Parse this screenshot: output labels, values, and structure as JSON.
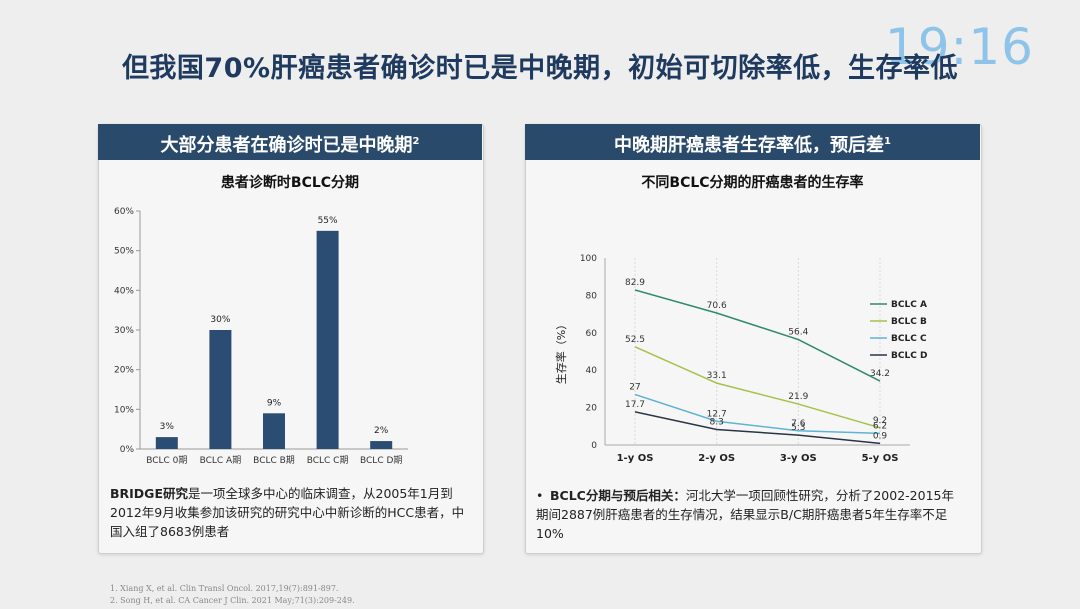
{
  "clock": "19:16",
  "title": "但我国70%肝癌患者确诊时已是中晚期，初始可切除率低，生存率低",
  "left_panel": {
    "header": "大部分患者在确诊时已是中晚期",
    "header_sup": "2",
    "desc_bold": "BRIDGE研究",
    "desc_rest": "是一项全球多中心的临床调查，从2005年1月到2012年9月收集参加该研究的研究中心中新诊断的HCC患者，中国入组了8683例患者"
  },
  "right_panel": {
    "header": "中晚期肝癌患者生存率低，预后差",
    "header_sup": "1",
    "bullet": "•",
    "desc_bold": "BCLC分期与预后相关：",
    "desc_rest": "河北大学一项回顾性研究，分析了2002-2015年期间2887例肝癌患者的生存情况，结果显示B/C期肝癌患者5年生存率不足10%"
  },
  "references": [
    "1. Xiang X, et al. Clin Transl Oncol. 2017,19(7):891-897.",
    "2. Song H, et al. CA Cancer J Clin. 2021 May;71(3):209-249."
  ],
  "chart_data": [
    {
      "type": "bar",
      "title": "患者诊断时BCLC分期",
      "categories": [
        "BCLC 0期",
        "BCLC A期",
        "BCLC B期",
        "BCLC C期",
        "BCLC D期"
      ],
      "values": [
        3,
        30,
        9,
        55,
        2
      ],
      "value_labels": [
        "3%",
        "30%",
        "9%",
        "55%",
        "2%"
      ],
      "ylim": [
        0,
        60
      ],
      "yticks": [
        "0%",
        "10%",
        "20%",
        "30%",
        "40%",
        "50%",
        "60%"
      ],
      "bar_color": "#2b4d74",
      "grid": false
    },
    {
      "type": "line",
      "title": "不同BCLC分期的肝癌患者的生存率",
      "ylabel": "生存率（%）",
      "categories": [
        "1-y OS",
        "2-y OS",
        "3-y OS",
        "5-y OS"
      ],
      "ylim": [
        0,
        100
      ],
      "yticks": [
        "0",
        "20",
        "40",
        "60",
        "80",
        "100"
      ],
      "legend_position": "right",
      "series": [
        {
          "name": "BCLC A",
          "values": [
            82.9,
            70.6,
            56.4,
            34.2
          ],
          "labels": [
            "82.9",
            "70.6",
            "56.4",
            "34.2"
          ],
          "color": "#2e8b6a"
        },
        {
          "name": "BCLC B",
          "values": [
            52.5,
            33.1,
            21.9,
            9.2
          ],
          "labels": [
            "52.5",
            "33.1",
            "21.9",
            "9.2"
          ],
          "color": "#a4c24a"
        },
        {
          "name": "BCLC C",
          "values": [
            27,
            12.7,
            7.6,
            6.2
          ],
          "labels": [
            "27",
            "12.7",
            "7.6",
            "6.2"
          ],
          "color": "#5fb3d6"
        },
        {
          "name": "BCLC D",
          "values": [
            17.7,
            8.3,
            5.3,
            0.9
          ],
          "labels": [
            "17.7",
            "8.3",
            "5.3",
            "0.9"
          ],
          "color": "#2a3446"
        }
      ]
    }
  ]
}
